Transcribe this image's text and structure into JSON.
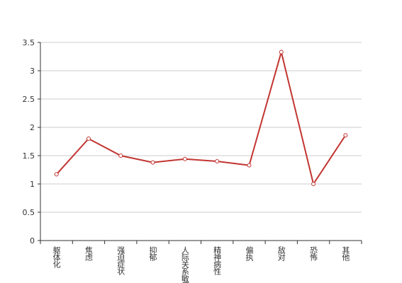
{
  "chart_data": {
    "type": "line",
    "categories": [
      "躯体化",
      "焦虑",
      "强迫症状",
      "抑郁",
      "人际关系敏感",
      "精神病性",
      "偏执",
      "敌对",
      "恐怖",
      "其他"
    ],
    "values": [
      1.17,
      1.8,
      1.5,
      1.38,
      1.44,
      1.4,
      1.33,
      3.33,
      1.0,
      1.86
    ],
    "color": "#c23531",
    "ylim": [
      0,
      3.5
    ],
    "yticks": [
      0,
      0.5,
      1,
      1.5,
      2,
      2.5,
      3,
      3.5
    ],
    "grid": true
  }
}
